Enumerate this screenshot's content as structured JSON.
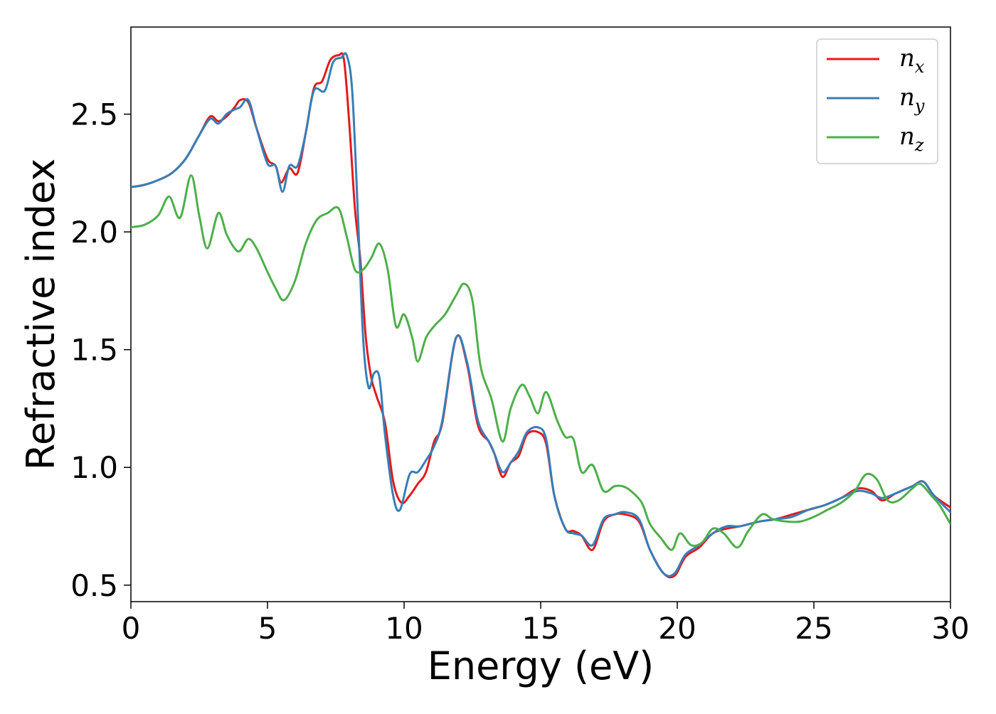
{
  "chart_data": {
    "type": "line",
    "title": "",
    "xlabel": "Energy (eV)",
    "ylabel": "Refractive index",
    "xlim": [
      0,
      30
    ],
    "ylim": [
      0.43,
      2.87
    ],
    "xticks": [
      0,
      5,
      10,
      15,
      20,
      25,
      30
    ],
    "xtick_labels": [
      "0",
      "5",
      "10",
      "15",
      "20",
      "25",
      "30"
    ],
    "yticks": [
      0.5,
      1.0,
      1.5,
      2.0,
      2.5
    ],
    "ytick_labels": [
      "0.5",
      "1.0",
      "1.5",
      "2.0",
      "2.5"
    ],
    "grid": false,
    "legend_position": "top-right",
    "series": [
      {
        "name": "n",
        "subscript": "x",
        "color": "#e41a1c",
        "x": [
          0,
          0.5,
          1,
          1.5,
          2,
          2.5,
          2.9,
          3.2,
          3.5,
          3.8,
          4.0,
          4.3,
          4.6,
          5.0,
          5.3,
          5.5,
          5.8,
          6.1,
          6.4,
          6.7,
          7.0,
          7.3,
          7.6,
          7.8,
          8.0,
          8.2,
          8.4,
          8.6,
          8.8,
          9.0,
          9.3,
          9.6,
          9.9,
          10.2,
          10.5,
          10.8,
          11.1,
          11.4,
          11.9,
          12.3,
          12.7,
          13.1,
          13.3,
          13.6,
          13.9,
          14.2,
          14.5,
          14.9,
          15.2,
          15.5,
          15.9,
          16.2,
          16.5,
          16.9,
          17.3,
          17.7,
          18.1,
          18.6,
          19.0,
          19.5,
          19.9,
          20.3,
          20.8,
          21.3,
          21.8,
          22.3,
          23.0,
          23.6,
          24.2,
          24.8,
          25.4,
          26.0,
          26.6,
          27.1,
          27.5,
          28.0,
          28.6,
          29.0,
          29.4,
          30.0
        ],
        "y": [
          2.19,
          2.2,
          2.22,
          2.25,
          2.31,
          2.41,
          2.49,
          2.47,
          2.49,
          2.53,
          2.56,
          2.55,
          2.44,
          2.31,
          2.28,
          2.21,
          2.27,
          2.25,
          2.42,
          2.61,
          2.64,
          2.73,
          2.75,
          2.73,
          2.45,
          2.1,
          1.88,
          1.55,
          1.38,
          1.3,
          1.19,
          0.94,
          0.85,
          0.88,
          0.93,
          0.98,
          1.11,
          1.19,
          1.55,
          1.44,
          1.18,
          1.11,
          1.06,
          0.96,
          1.02,
          1.05,
          1.14,
          1.15,
          1.1,
          0.88,
          0.74,
          0.73,
          0.71,
          0.65,
          0.77,
          0.8,
          0.8,
          0.77,
          0.65,
          0.55,
          0.54,
          0.62,
          0.66,
          0.72,
          0.74,
          0.75,
          0.77,
          0.78,
          0.8,
          0.82,
          0.84,
          0.87,
          0.91,
          0.9,
          0.86,
          0.89,
          0.92,
          0.94,
          0.88,
          0.83
        ]
      },
      {
        "name": "n",
        "subscript": "y",
        "color": "#377eb8",
        "x": [
          0,
          0.5,
          1,
          1.5,
          2,
          2.5,
          2.9,
          3.2,
          3.5,
          3.8,
          4.0,
          4.3,
          4.6,
          5.0,
          5.3,
          5.55,
          5.8,
          6.1,
          6.4,
          6.7,
          7.1,
          7.4,
          7.7,
          7.9,
          8.1,
          8.3,
          8.5,
          8.7,
          8.9,
          9.1,
          9.3,
          9.6,
          9.85,
          10.2,
          10.5,
          10.8,
          11.1,
          11.4,
          11.9,
          12.3,
          12.7,
          13.1,
          13.3,
          13.6,
          13.9,
          14.2,
          14.5,
          14.9,
          15.2,
          15.5,
          15.9,
          16.2,
          16.5,
          16.9,
          17.3,
          17.7,
          18.1,
          18.6,
          19.0,
          19.5,
          19.9,
          20.3,
          20.8,
          21.3,
          21.8,
          22.3,
          23.0,
          23.6,
          24.2,
          24.8,
          25.4,
          26.0,
          26.6,
          27.1,
          27.5,
          28.0,
          28.6,
          29.0,
          29.4,
          30.0
        ],
        "y": [
          2.19,
          2.2,
          2.22,
          2.25,
          2.31,
          2.41,
          2.48,
          2.46,
          2.5,
          2.52,
          2.53,
          2.56,
          2.44,
          2.29,
          2.28,
          2.17,
          2.28,
          2.28,
          2.42,
          2.6,
          2.6,
          2.72,
          2.74,
          2.75,
          2.6,
          2.1,
          1.55,
          1.34,
          1.4,
          1.38,
          1.14,
          0.88,
          0.82,
          0.97,
          0.98,
          1.03,
          1.09,
          1.2,
          1.55,
          1.45,
          1.2,
          1.11,
          1.06,
          0.98,
          1.02,
          1.07,
          1.15,
          1.17,
          1.12,
          0.88,
          0.74,
          0.72,
          0.71,
          0.67,
          0.78,
          0.8,
          0.81,
          0.78,
          0.65,
          0.55,
          0.55,
          0.63,
          0.67,
          0.72,
          0.75,
          0.75,
          0.77,
          0.78,
          0.79,
          0.82,
          0.84,
          0.87,
          0.9,
          0.89,
          0.87,
          0.89,
          0.92,
          0.94,
          0.88,
          0.81
        ]
      },
      {
        "name": "n",
        "subscript": "z",
        "color": "#4daf4a",
        "x": [
          0,
          0.5,
          1.0,
          1.4,
          1.8,
          2.2,
          2.5,
          2.8,
          3.2,
          3.5,
          3.8,
          4.0,
          4.3,
          4.6,
          5.0,
          5.3,
          5.6,
          6.0,
          6.4,
          6.8,
          7.2,
          7.6,
          7.9,
          8.2,
          8.5,
          8.8,
          9.1,
          9.4,
          9.7,
          10.0,
          10.3,
          10.5,
          10.8,
          11.1,
          11.5,
          11.9,
          12.2,
          12.5,
          12.8,
          13.2,
          13.6,
          13.9,
          14.3,
          14.6,
          14.9,
          15.2,
          15.6,
          15.9,
          16.2,
          16.5,
          16.9,
          17.3,
          17.7,
          18.0,
          18.3,
          18.7,
          19.0,
          19.4,
          19.8,
          20.1,
          20.5,
          20.9,
          21.3,
          21.7,
          22.2,
          22.6,
          23.1,
          23.5,
          24.0,
          24.5,
          25.0,
          25.5,
          26.0,
          26.5,
          26.9,
          27.3,
          27.7,
          28.1,
          28.6,
          28.9,
          29.3,
          29.6,
          30.0
        ],
        "y": [
          2.02,
          2.03,
          2.07,
          2.15,
          2.06,
          2.24,
          2.07,
          1.93,
          2.08,
          1.99,
          1.93,
          1.92,
          1.97,
          1.93,
          1.83,
          1.76,
          1.71,
          1.79,
          1.95,
          2.05,
          2.08,
          2.1,
          1.98,
          1.84,
          1.84,
          1.89,
          1.95,
          1.84,
          1.6,
          1.65,
          1.55,
          1.45,
          1.55,
          1.6,
          1.65,
          1.73,
          1.78,
          1.71,
          1.43,
          1.29,
          1.11,
          1.25,
          1.35,
          1.3,
          1.23,
          1.32,
          1.2,
          1.13,
          1.12,
          0.98,
          1.01,
          0.9,
          0.92,
          0.92,
          0.9,
          0.85,
          0.76,
          0.7,
          0.65,
          0.72,
          0.67,
          0.68,
          0.74,
          0.72,
          0.66,
          0.73,
          0.8,
          0.78,
          0.77,
          0.77,
          0.79,
          0.82,
          0.85,
          0.9,
          0.97,
          0.95,
          0.86,
          0.86,
          0.91,
          0.93,
          0.88,
          0.84,
          0.76
        ]
      }
    ]
  }
}
